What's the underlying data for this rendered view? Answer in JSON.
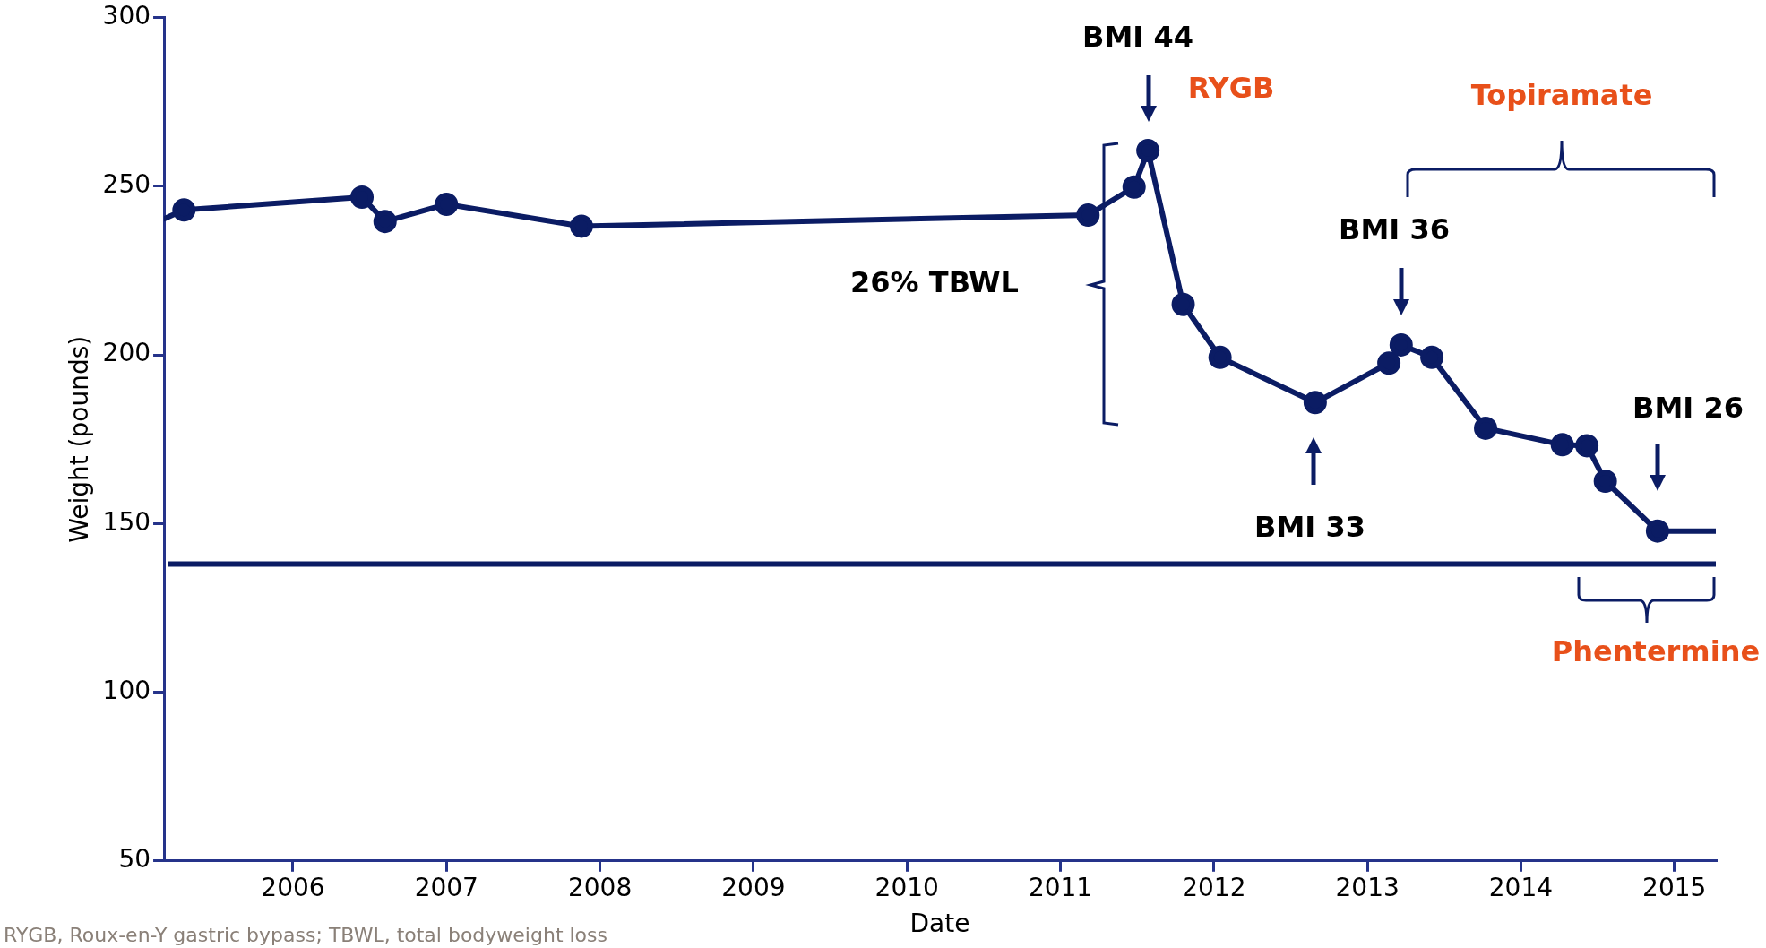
{
  "chart_data": {
    "type": "line",
    "xlabel": "Date",
    "ylabel": "Weight (pounds)",
    "x": [
      2005.16,
      2005.29,
      2006.45,
      2006.6,
      2007.0,
      2007.88,
      2011.18,
      2011.48,
      2011.57,
      2011.8,
      2012.04,
      2012.66,
      2013.14,
      2013.22,
      2013.42,
      2013.77,
      2014.27,
      2014.43,
      2014.55,
      2014.89,
      2015.27
    ],
    "series": [
      {
        "color": "#0b1c64",
        "values": [
          240.4,
          243,
          246.8,
          239.6,
          244.7,
          238.2,
          241.5,
          249.8,
          260.6,
          215,
          199.3,
          185.9,
          197.6,
          203,
          199.3,
          178.3,
          173.4,
          173.1,
          162.6,
          147.8,
          147.8
        ]
      }
    ],
    "xlim": [
      2005.16,
      2015.27
    ],
    "xticks": [
      2006,
      2007,
      2008,
      2009,
      2010,
      2011,
      2012,
      2013,
      2014,
      2015
    ],
    "ylim": [
      50,
      300
    ],
    "yticks": [
      50,
      100,
      150,
      200,
      250,
      300
    ],
    "grid": false,
    "legend": false,
    "marker": "circle",
    "line_style": "solid",
    "ref_lines": [
      {
        "axis": "y",
        "value": 138,
        "color": "#0b1c64"
      }
    ],
    "annotations": [
      "BMI 44",
      "BMI 36",
      "BMI 33",
      "BMI 26",
      "RYGB",
      "26% TBWL",
      "Topiramate",
      "Phentermine",
      "RYGB, Roux-en-Y gastric bypass; TBWL, total bodyweight loss"
    ]
  }
}
